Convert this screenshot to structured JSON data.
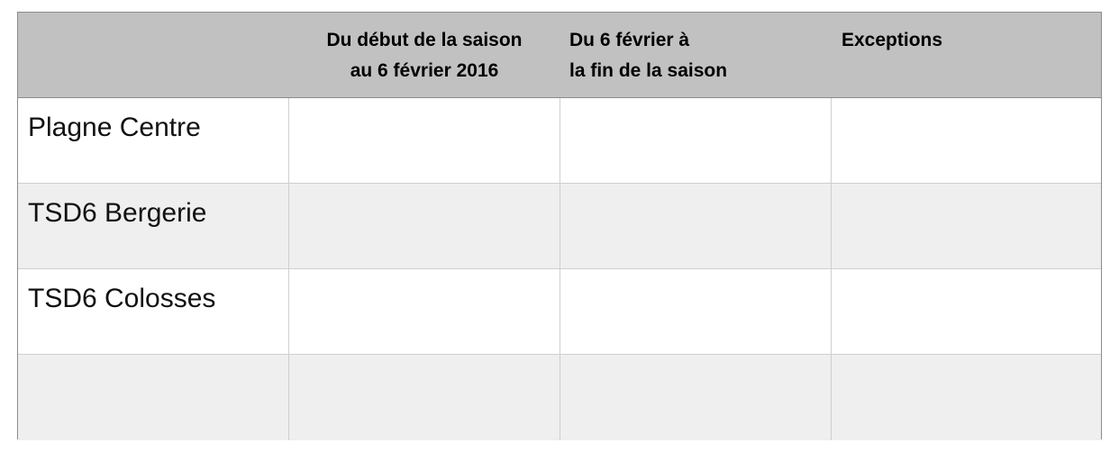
{
  "table": {
    "headers": [
      "",
      "Du début de la saison\nau 6 février 2016",
      "Du 6 février à\nla fin de la saison",
      "Exceptions"
    ],
    "header_lines": {
      "col1": [
        "Du début de la saison",
        "au 6 février 2016"
      ],
      "col2": [
        "Du 6 février à",
        "la fin de la saison"
      ],
      "col3": [
        "Exceptions"
      ]
    },
    "rows": [
      {
        "label": "Plagne Centre",
        "cells": [
          "",
          "",
          ""
        ]
      },
      {
        "label": "TSD6 Bergerie",
        "cells": [
          "",
          "",
          ""
        ]
      },
      {
        "label": "TSD6 Colosses",
        "cells": [
          "",
          "",
          ""
        ]
      },
      {
        "label": "",
        "cells": [
          "",
          "",
          ""
        ]
      }
    ],
    "colors": {
      "header_bg": "#c0c1c0",
      "alt_row_bg": "#efefef",
      "border": "#8c8c8c"
    }
  }
}
